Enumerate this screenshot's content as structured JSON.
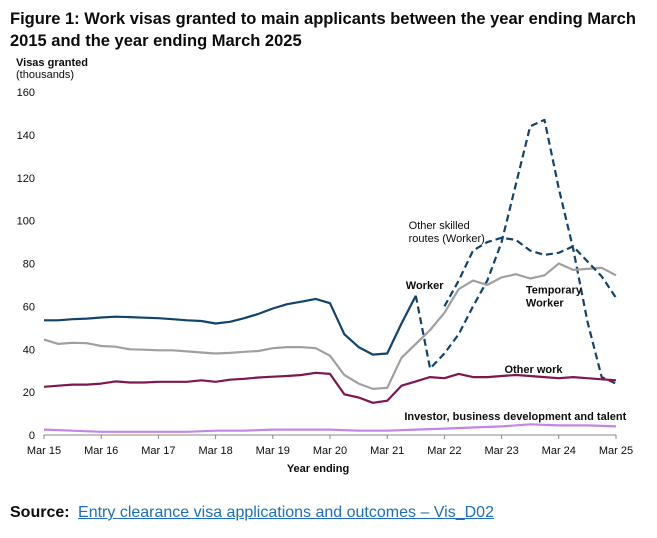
{
  "figure": {
    "title": "Figure 1: Work visas granted to main applicants between the year ending March 2015 and the year ending March 2025"
  },
  "source": {
    "label": "Source:",
    "link_text": "Entry clearance visa applications and outcomes – Vis_D02"
  },
  "chart_data": {
    "type": "line",
    "title": "Figure 1: Work visas granted to main applicants between the year ending March 2015 and the year ending March 2025",
    "xlabel": "Year ending",
    "ylabel": "Visas granted (thousands)",
    "ylabel_lines": [
      "Visas granted",
      "(thousands)"
    ],
    "ylim": [
      0,
      160
    ],
    "yticks": [
      0,
      20,
      40,
      60,
      80,
      100,
      120,
      140,
      160
    ],
    "xlim": [
      0,
      40
    ],
    "xticks": [
      {
        "x": 0,
        "label": "Mar 15"
      },
      {
        "x": 4,
        "label": "Mar 16"
      },
      {
        "x": 8,
        "label": "Mar 17"
      },
      {
        "x": 12,
        "label": "Mar 18"
      },
      {
        "x": 16,
        "label": "Mar 19"
      },
      {
        "x": 20,
        "label": "Mar 20"
      },
      {
        "x": 24,
        "label": "Mar 21"
      },
      {
        "x": 28,
        "label": "Mar 22"
      },
      {
        "x": 32,
        "label": "Mar 23"
      },
      {
        "x": 36,
        "label": "Mar 24"
      },
      {
        "x": 40,
        "label": "Mar 25"
      }
    ],
    "grid": false,
    "series": [
      {
        "name": "Worker",
        "color": "#12436d",
        "style": "solid",
        "x": [
          0,
          1,
          2,
          3,
          4,
          5,
          6,
          7,
          8,
          9,
          10,
          11,
          12,
          13,
          14,
          15,
          16,
          17,
          18,
          19,
          20,
          21,
          22,
          23,
          24,
          25,
          26
        ],
        "values": [
          53.5,
          53.5,
          54,
          54.3,
          54.8,
          55.2,
          55,
          54.7,
          54.5,
          54,
          53.5,
          53.2,
          52,
          52.8,
          54.5,
          56.5,
          59,
          61,
          62.2,
          63.5,
          61.5,
          47,
          41,
          37.5,
          38,
          52,
          65
        ]
      },
      {
        "name": "Other skilled routes (Worker)",
        "color": "#12436d",
        "style": "dashed",
        "x": [
          26,
          27,
          28,
          29,
          30,
          31,
          32,
          33,
          34,
          35,
          36,
          37,
          38,
          39,
          40
        ],
        "values": [
          65,
          31,
          38,
          47,
          60,
          72,
          90,
          117,
          144,
          147,
          115,
          87,
          53,
          27,
          24
        ]
      },
      {
        "name": "Temporary Worker",
        "color": "#a0a0a0",
        "style": "solid",
        "x": [
          0,
          1,
          2,
          3,
          4,
          5,
          6,
          7,
          8,
          9,
          10,
          11,
          12,
          13,
          14,
          15,
          16,
          17,
          18,
          19,
          20,
          21,
          22,
          23,
          24,
          25,
          26,
          27,
          28,
          29,
          30,
          31,
          32,
          33,
          34,
          35,
          36,
          37,
          38,
          39,
          40
        ],
        "values": [
          44.5,
          42.5,
          43,
          42.8,
          41.5,
          41.2,
          40,
          39.8,
          39.5,
          39.5,
          39,
          38.5,
          38,
          38.3,
          38.8,
          39.2,
          40.5,
          41,
          41,
          40.5,
          37,
          28,
          24,
          21.5,
          22,
          36,
          42.5,
          49,
          57,
          68,
          72,
          70,
          73.5,
          75,
          73,
          74.5,
          80,
          77,
          77.5,
          78,
          74.5
        ]
      },
      {
        "name": "Temporary Worker (dashed)",
        "color": "#12436d",
        "style": "dashed",
        "x": [
          28,
          29,
          30,
          31,
          32,
          33,
          34,
          35,
          36,
          37,
          38,
          39,
          40
        ],
        "values": [
          60,
          72,
          86,
          90,
          92,
          91,
          86,
          84,
          85,
          88,
          81,
          74,
          64
        ]
      },
      {
        "name": "Other work",
        "color": "#801650",
        "style": "solid",
        "x": [
          0,
          1,
          2,
          3,
          4,
          5,
          6,
          7,
          8,
          9,
          10,
          11,
          12,
          13,
          14,
          15,
          16,
          17,
          18,
          19,
          20,
          21,
          22,
          23,
          24,
          25,
          26,
          27,
          28,
          29,
          30,
          31,
          32,
          33,
          34,
          35,
          36,
          37,
          38,
          39,
          40
        ],
        "values": [
          22.5,
          23,
          23.5,
          23.5,
          24,
          25,
          24.5,
          24.5,
          24.8,
          24.8,
          24.8,
          25.5,
          24.8,
          25.8,
          26.2,
          26.8,
          27.2,
          27.5,
          28,
          29,
          28.5,
          19,
          17.5,
          15,
          16,
          23,
          25,
          27,
          26.5,
          28.5,
          27,
          27,
          27.5,
          28,
          27.5,
          27,
          26.5,
          27,
          26.5,
          26,
          25.5
        ]
      },
      {
        "name": "Investor, business development and talent",
        "color": "#c585e8",
        "style": "solid",
        "x": [
          0,
          2,
          4,
          6,
          8,
          10,
          12,
          14,
          16,
          18,
          20,
          22,
          24,
          26,
          28,
          30,
          32,
          34,
          36,
          38,
          40
        ],
        "values": [
          2.5,
          2,
          1.5,
          1.5,
          1.5,
          1.5,
          2,
          2,
          2.5,
          2.5,
          2.5,
          2,
          2,
          2.5,
          3,
          3.5,
          4,
          5,
          4.5,
          4.5,
          4
        ]
      }
    ],
    "annotations": [
      {
        "lines": [
          "Other skilled",
          "routes (Worker)"
        ],
        "x": 25.5,
        "y": 96,
        "anchor": "start"
      },
      {
        "lines": [
          "Worker"
        ],
        "x": 25.3,
        "y": 68,
        "anchor": "start"
      },
      {
        "lines": [
          "Temporary",
          "Worker"
        ],
        "x": 33.7,
        "y": 66,
        "anchor": "start"
      },
      {
        "lines": [
          "Other work"
        ],
        "x": 32.2,
        "y": 29,
        "anchor": "start"
      },
      {
        "lines": [
          "Investor, business development and talent"
        ],
        "x": 25.2,
        "y": 7,
        "anchor": "start"
      }
    ]
  }
}
